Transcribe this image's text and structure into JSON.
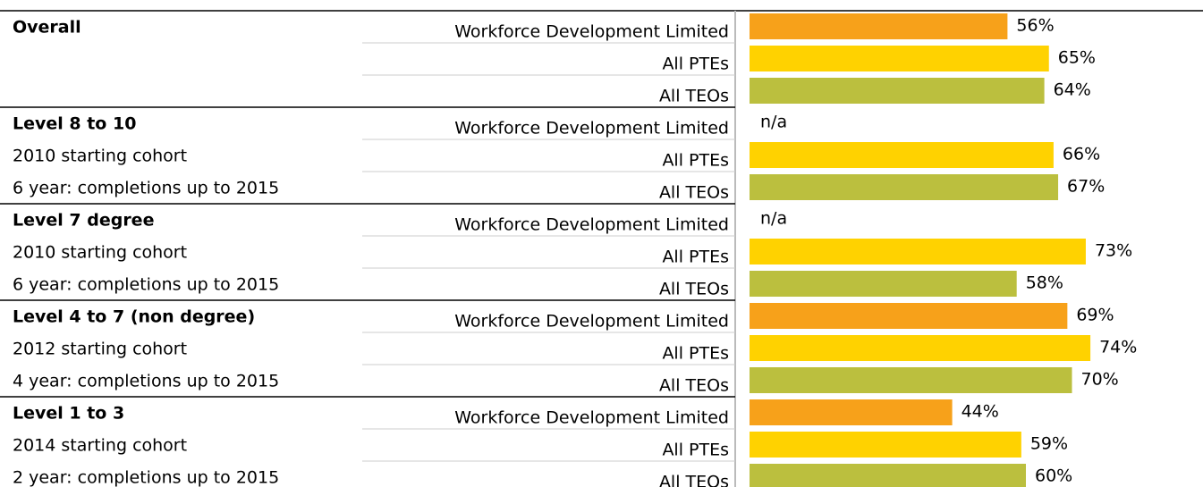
{
  "chart_data": {
    "type": "bar",
    "categories": [
      "Overall",
      "Level 8 to 10",
      "Level 7 degree",
      "Level 4 to 7 (non degree)",
      "Level 1 to 3"
    ],
    "category_notes": [
      [],
      [
        "2010 starting cohort",
        "6 year: completions up to 2015"
      ],
      [
        "2010 starting cohort",
        "6 year: completions up to 2015"
      ],
      [
        "2012 starting cohort",
        "4 year: completions up to 2015"
      ],
      [
        "2014 starting cohort",
        "2 year: completions up to 2015"
      ]
    ],
    "series": [
      {
        "name": "Workforce Development Limited",
        "color": "#f7a11a",
        "values": [
          56,
          null,
          null,
          69,
          44
        ],
        "value_labels": [
          "56%",
          "n/a",
          "n/a",
          "69%",
          "44%"
        ]
      },
      {
        "name": "All PTEs",
        "color": "#ffd200",
        "values": [
          65,
          66,
          73,
          74,
          59
        ],
        "value_labels": [
          "65%",
          "66%",
          "73%",
          "74%",
          "59%"
        ]
      },
      {
        "name": "All TEOs",
        "color": "#bbbf3e",
        "values": [
          64,
          67,
          58,
          70,
          60
        ],
        "value_labels": [
          "64%",
          "67%",
          "58%",
          "70%",
          "60%"
        ]
      }
    ]
  }
}
